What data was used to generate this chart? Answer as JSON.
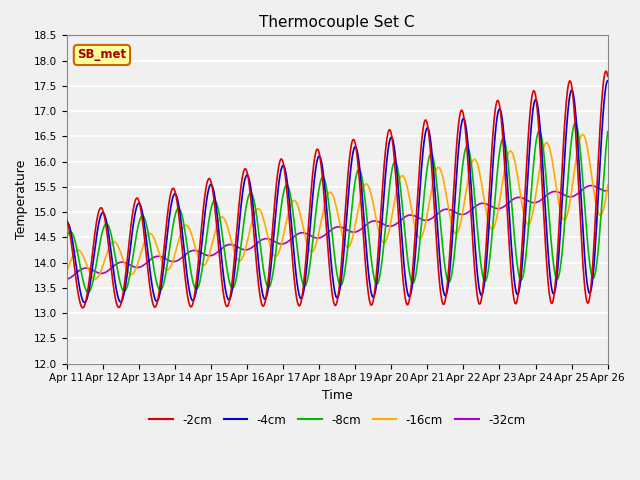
{
  "title": "Thermocouple Set C",
  "xlabel": "Time",
  "ylabel": "Temperature",
  "ylim": [
    12.0,
    18.5
  ],
  "bg_color": "#f0f0f0",
  "plot_bg": "#f0f0f0",
  "grid_color": "white",
  "series": {
    "-2cm": {
      "color": "#dd0000",
      "lw": 1.2
    },
    "-4cm": {
      "color": "#0000dd",
      "lw": 1.2
    },
    "-8cm": {
      "color": "#00bb00",
      "lw": 1.2
    },
    "-16cm": {
      "color": "#ffaa00",
      "lw": 1.2
    },
    "-32cm": {
      "color": "#aa00cc",
      "lw": 1.2
    }
  },
  "xtick_labels": [
    "Apr 11",
    "Apr 12",
    "Apr 13",
    "Apr 14",
    "Apr 15",
    "Apr 16",
    "Apr 17",
    "Apr 18",
    "Apr 19",
    "Apr 20",
    "Apr 21",
    "Apr 22",
    "Apr 23",
    "Apr 24",
    "Apr 25",
    "Apr 26"
  ],
  "ytick_vals": [
    12.0,
    12.5,
    13.0,
    13.5,
    14.0,
    14.5,
    15.0,
    15.5,
    16.0,
    16.5,
    17.0,
    17.5,
    18.0,
    18.5
  ],
  "annotation_text": "SB_met",
  "annotation_color": "#aa0000",
  "annotation_bg": "#ffff99",
  "annotation_border": "#cc6600"
}
